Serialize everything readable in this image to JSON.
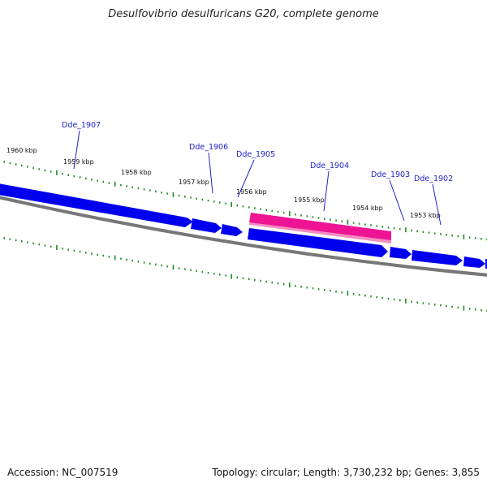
{
  "title": "Desulfovibrio desulfuricans G20, complete genome",
  "footer": {
    "accession": "Accession: NC_007519",
    "summary": "Topology: circular; Length: 3,730,232 bp; Genes: 3,855"
  },
  "colors": {
    "gene_forward": "#0000ee",
    "gene_highlight": "#ee1493",
    "backbone": "#777777",
    "tick": "#228B22",
    "gene_label": "#2222cc"
  },
  "scale_labels": [
    "1960 kbp",
    "1959 kbp",
    "1958 kbp",
    "1957 kbp",
    "1956 kbp",
    "1955 kbp",
    "1954 kbp",
    "1953 kbp"
  ],
  "genes": [
    {
      "name": "Dde_1907"
    },
    {
      "name": "Dde_1906"
    },
    {
      "name": "Dde_1905"
    },
    {
      "name": "Dde_1904"
    },
    {
      "name": "Dde_1903"
    },
    {
      "name": "Dde_1902"
    }
  ]
}
